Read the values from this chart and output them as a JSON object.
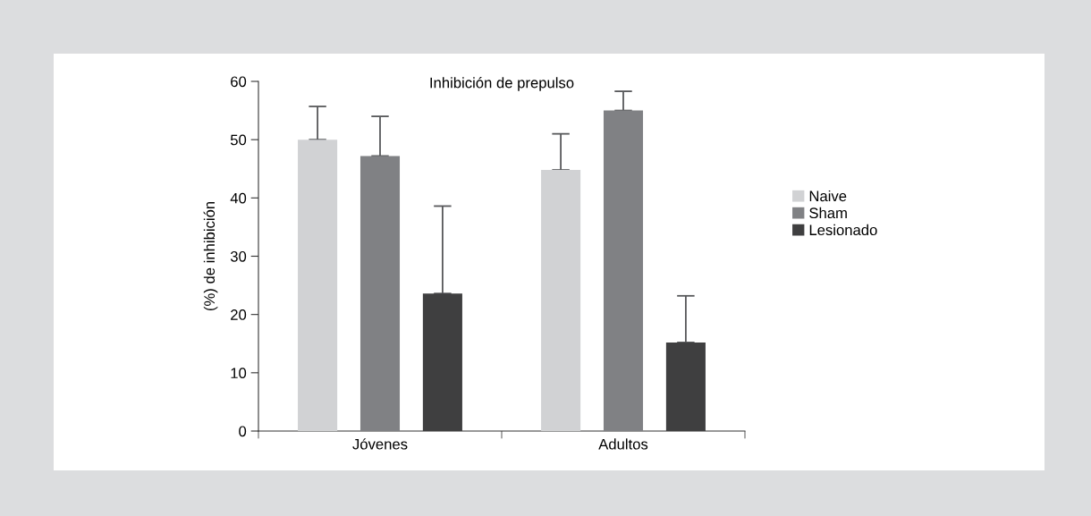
{
  "chart_data": {
    "type": "bar",
    "title": "Inhibición de prepulso",
    "ylabel": "(%) de inhibición",
    "categories": [
      "Jóvenes",
      "Adultos"
    ],
    "series": [
      {
        "name": "Naive",
        "color": "#d1d2d4",
        "values": [
          50,
          44.8
        ],
        "errors": [
          [
            50,
            55.7
          ],
          [
            44.8,
            51.0
          ]
        ]
      },
      {
        "name": "Sham",
        "color": "#808184",
        "values": [
          47.2,
          55.0
        ],
        "errors": [
          [
            47.2,
            54.0
          ],
          [
            55.0,
            58.3
          ]
        ]
      },
      {
        "name": "Lesionado",
        "color": "#3f3f40",
        "values": [
          23.6,
          15.2
        ],
        "errors": [
          [
            23.6,
            38.6
          ],
          [
            15.2,
            23.2
          ]
        ]
      }
    ],
    "ylim": [
      0,
      60
    ],
    "yticks": [
      0,
      10,
      20,
      30,
      40,
      50,
      60
    ],
    "grid": false,
    "legend": "right"
  }
}
